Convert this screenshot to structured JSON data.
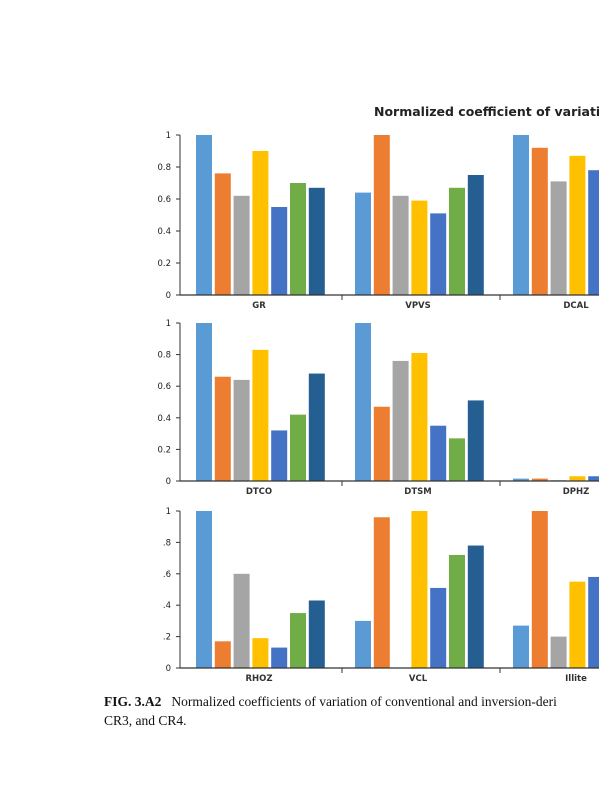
{
  "chart_data": [
    {
      "type": "bar",
      "title": "Normalized coefficient of variatio",
      "categories": [
        "GR",
        "VPVS",
        "DCAL"
      ],
      "series_colors": [
        "#5b9bd5",
        "#ed7d31",
        "#a5a5a5",
        "#ffc000",
        "#4472c4",
        "#70ad47",
        "#255e91"
      ],
      "values": [
        [
          1.0,
          0.76,
          0.62,
          0.9,
          0.55,
          0.7,
          0.67
        ],
        [
          0.64,
          1.0,
          0.62,
          0.59,
          0.51,
          0.67,
          0.75
        ],
        [
          1.0,
          0.92,
          0.71,
          0.87,
          0.78
        ]
      ],
      "yticks": [
        "0",
        "0.2",
        "0.4",
        "0.6",
        "0.8",
        "1"
      ],
      "ylim": [
        0,
        1
      ]
    },
    {
      "type": "bar",
      "categories": [
        "DTCO",
        "DTSM",
        "DPHZ"
      ],
      "series_colors": [
        "#5b9bd5",
        "#ed7d31",
        "#a5a5a5",
        "#ffc000",
        "#4472c4",
        "#70ad47",
        "#255e91"
      ],
      "values": [
        [
          1.0,
          0.66,
          0.64,
          0.83,
          0.32,
          0.42,
          0.68
        ],
        [
          1.0,
          0.47,
          0.76,
          0.81,
          0.35,
          0.27,
          0.51
        ],
        [
          0.015,
          0.015,
          0.005,
          0.03,
          0.03
        ]
      ],
      "yticks": [
        "0",
        "0.2",
        "0.4",
        "0.6",
        "0.8",
        "1"
      ],
      "ylim": [
        0,
        1
      ]
    },
    {
      "type": "bar",
      "categories": [
        "RHOZ",
        "VCL",
        "Illite"
      ],
      "series_colors": [
        "#5b9bd5",
        "#ed7d31",
        "#a5a5a5",
        "#ffc000",
        "#4472c4",
        "#70ad47",
        "#255e91"
      ],
      "values": [
        [
          1.0,
          0.17,
          0.6,
          0.19,
          0.13,
          0.35,
          0.43
        ],
        [
          0.3,
          0.96,
          0.0,
          1.0,
          0.51,
          0.72,
          0.78
        ],
        [
          0.27,
          1.0,
          0.2,
          0.55,
          0.58
        ]
      ],
      "yticks": [
        "0",
        ".2",
        ".4",
        ".6",
        ".8",
        "1"
      ],
      "ylim": [
        0,
        1
      ]
    }
  ],
  "caption": {
    "label": "FIG. 3.A2",
    "text": "Normalized coefficients of variation of conventional and inversion-deri\nCR3, and CR4."
  }
}
